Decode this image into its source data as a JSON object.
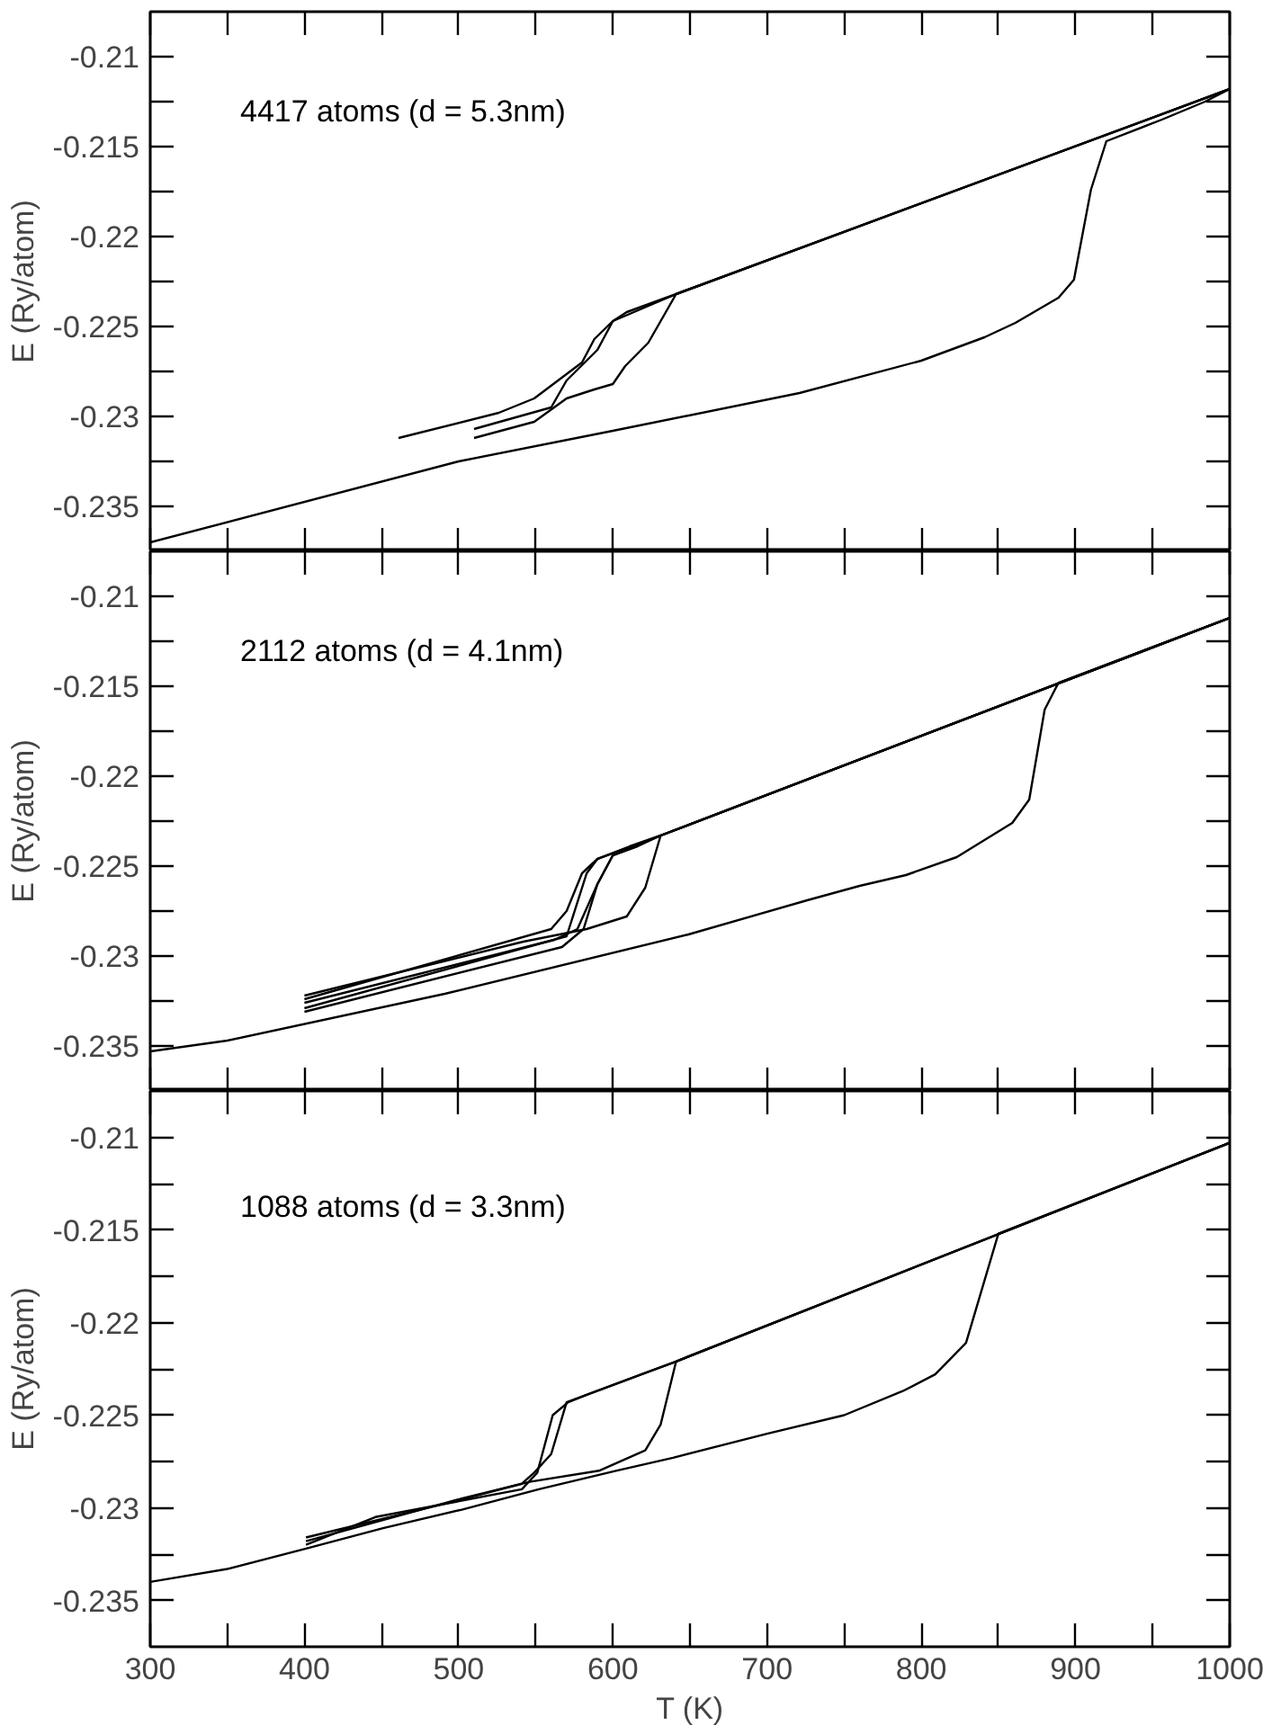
{
  "chart_data": [
    {
      "type": "line",
      "ylabel": "E (Ry/atom)",
      "annotations": [
        "4417 atoms (d = 5.3nm)"
      ],
      "xlim": [
        300,
        1000
      ],
      "ylim": [
        -0.2375,
        -0.2075
      ],
      "tick_labels": "y",
      "grid": false,
      "marker": "none",
      "line_style": "solid",
      "xticks": [
        300,
        {
          "value": 350,
          "label": null
        },
        400,
        {
          "value": 450,
          "label": null
        },
        500,
        {
          "value": 550,
          "label": null
        },
        600,
        {
          "value": 650,
          "label": null
        },
        700,
        {
          "value": 750,
          "label": null
        },
        800,
        {
          "value": 850,
          "label": null
        },
        900,
        {
          "value": 950,
          "label": null
        },
        1000
      ],
      "yticks": [
        -0.21,
        {
          "value": -0.2125,
          "label": null
        },
        -0.215,
        {
          "value": -0.2175,
          "label": null
        },
        -0.22,
        {
          "value": -0.2225,
          "label": null
        },
        -0.225,
        {
          "value": -0.2275,
          "label": null
        },
        -0.23,
        {
          "value": -0.2325,
          "label": null
        },
        -0.235
      ],
      "series": [
        {
          "color": "#000000",
          "x": [
            300,
            500,
            600,
            721,
            800,
            841,
            861,
            889,
            899,
            910,
            920,
            956,
            984,
            1000
          ],
          "values": [
            -0.237,
            -0.2325,
            -0.2308,
            -0.2287,
            -0.2269,
            -0.2256,
            -0.2248,
            -0.2234,
            -0.2224,
            -0.2174,
            -0.2147,
            -0.2135,
            -0.2125,
            -0.2118
          ]
        },
        {
          "color": "#000000",
          "x": [
            1000,
            641,
            623,
            608,
            600,
            588,
            570,
            549,
            510
          ],
          "values": [
            -0.2118,
            -0.2232,
            -0.2259,
            -0.2272,
            -0.2282,
            -0.2285,
            -0.229,
            -0.2303,
            -0.2312
          ]
        },
        {
          "color": "#000000",
          "x": [
            1000,
            641,
            600,
            590,
            570,
            560,
            510
          ],
          "values": [
            -0.2118,
            -0.2232,
            -0.2247,
            -0.2263,
            -0.228,
            -0.2295,
            -0.2307
          ]
        },
        {
          "color": "#000000",
          "x": [
            1000,
            641,
            609,
            600,
            588,
            580,
            549,
            526,
            461
          ],
          "values": [
            -0.2118,
            -0.2232,
            -0.2242,
            -0.2247,
            -0.2257,
            -0.227,
            -0.229,
            -0.2298,
            -0.2312
          ]
        }
      ]
    },
    {
      "type": "line",
      "ylabel": "E (Ry/atom)",
      "annotations": [
        "2112 atoms (d = 4.1nm)"
      ],
      "xlim": [
        300,
        1000
      ],
      "ylim": [
        -0.2375,
        -0.2075
      ],
      "tick_labels": "y",
      "grid": false,
      "marker": "none",
      "line_style": "solid",
      "xticks": [
        300,
        {
          "value": 350,
          "label": null
        },
        400,
        {
          "value": 450,
          "label": null
        },
        500,
        {
          "value": 550,
          "label": null
        },
        600,
        {
          "value": 650,
          "label": null
        },
        700,
        {
          "value": 750,
          "label": null
        },
        800,
        {
          "value": 850,
          "label": null
        },
        900,
        {
          "value": 950,
          "label": null
        },
        1000
      ],
      "yticks": [
        -0.21,
        {
          "value": -0.2125,
          "label": null
        },
        -0.215,
        {
          "value": -0.2175,
          "label": null
        },
        -0.22,
        {
          "value": -0.2225,
          "label": null
        },
        -0.225,
        {
          "value": -0.2275,
          "label": null
        },
        -0.23,
        {
          "value": -0.2325,
          "label": null
        },
        -0.235
      ],
      "series": [
        {
          "color": "#000000",
          "x": [
            300,
            350,
            491,
            649,
            726,
            760,
            790,
            823,
            859,
            870,
            880,
            889,
            1000
          ],
          "values": [
            -0.2353,
            -0.2347,
            -0.2321,
            -0.2288,
            -0.2269,
            -0.2261,
            -0.2255,
            -0.2245,
            -0.2226,
            -0.2213,
            -0.2163,
            -0.2148,
            -0.2112
          ]
        },
        {
          "color": "#000000",
          "x": [
            1000,
            631,
            621,
            609,
            583,
            542,
            400
          ],
          "values": [
            -0.2112,
            -0.2233,
            -0.2262,
            -0.2278,
            -0.2285,
            -0.2292,
            -0.2322
          ]
        },
        {
          "color": "#000000",
          "x": [
            1000,
            631,
            616,
            600,
            590,
            581,
            567,
            400
          ],
          "values": [
            -0.2112,
            -0.2233,
            -0.2239,
            -0.2244,
            -0.226,
            -0.2285,
            -0.2295,
            -0.2331
          ]
        },
        {
          "color": "#000000",
          "x": [
            1000,
            631,
            600,
            590,
            577,
            562,
            400
          ],
          "values": [
            -0.2112,
            -0.2233,
            -0.2244,
            -0.226,
            -0.2285,
            -0.2291,
            -0.2326
          ]
        },
        {
          "color": "#000000",
          "x": [
            1000,
            631,
            590,
            580,
            570,
            560,
            400
          ],
          "values": [
            -0.2112,
            -0.2233,
            -0.2246,
            -0.2254,
            -0.2275,
            -0.2285,
            -0.2324
          ]
        },
        {
          "color": "#000000",
          "x": [
            1000,
            631,
            611,
            590,
            583,
            570,
            400
          ],
          "values": [
            -0.2112,
            -0.2233,
            -0.2239,
            -0.2246,
            -0.2254,
            -0.2289,
            -0.2329
          ]
        }
      ]
    },
    {
      "type": "line",
      "xlabel": "T (K)",
      "ylabel": "E (Ry/atom)",
      "annotations": [
        "1088 atoms (d = 3.3nm)"
      ],
      "xlim": [
        300,
        1000
      ],
      "ylim": [
        -0.2375,
        -0.2075
      ],
      "grid": false,
      "marker": "none",
      "line_style": "solid",
      "xticks": [
        300,
        {
          "value": 350,
          "label": null
        },
        400,
        {
          "value": 450,
          "label": null
        },
        500,
        {
          "value": 550,
          "label": null
        },
        600,
        {
          "value": 650,
          "label": null
        },
        700,
        {
          "value": 750,
          "label": null
        },
        800,
        {
          "value": 850,
          "label": null
        },
        900,
        {
          "value": 950,
          "label": null
        },
        1000
      ],
      "yticks": [
        -0.21,
        {
          "value": -0.2125,
          "label": null
        },
        -0.215,
        {
          "value": -0.2175,
          "label": null
        },
        -0.22,
        {
          "value": -0.2225,
          "label": null
        },
        -0.225,
        {
          "value": -0.2275,
          "label": null
        },
        -0.23,
        {
          "value": -0.2325,
          "label": null
        },
        -0.235
      ],
      "series": [
        {
          "color": "#000000",
          "x": [
            300,
            350,
            401,
            451,
            502,
            552,
            602,
            639,
            700,
            750,
            788,
            809,
            829,
            850,
            1000
          ],
          "values": [
            -0.234,
            -0.2333,
            -0.2322,
            -0.2311,
            -0.2301,
            -0.229,
            -0.228,
            -0.2273,
            -0.226,
            -0.225,
            -0.2237,
            -0.2228,
            -0.2211,
            -0.2152,
            -0.2103
          ]
        },
        {
          "color": "#000000",
          "x": [
            1000,
            641,
            631,
            621,
            591,
            546,
            502,
            401
          ],
          "values": [
            -0.2103,
            -0.2221,
            -0.2255,
            -0.2269,
            -0.228,
            -0.2286,
            -0.2295,
            -0.2318
          ]
        },
        {
          "color": "#000000",
          "x": [
            1000,
            641,
            583,
            570,
            560,
            549,
            541,
            490,
            401
          ],
          "values": [
            -0.2103,
            -0.2221,
            -0.2239,
            -0.2243,
            -0.2271,
            -0.2281,
            -0.2287,
            -0.2298,
            -0.2316
          ]
        },
        {
          "color": "#000000",
          "x": [
            1000,
            641,
            583,
            571,
            561,
            551,
            541,
            446,
            401
          ],
          "values": [
            -0.2103,
            -0.2221,
            -0.2239,
            -0.2243,
            -0.225,
            -0.2281,
            -0.229,
            -0.2305,
            -0.232
          ]
        }
      ]
    }
  ]
}
